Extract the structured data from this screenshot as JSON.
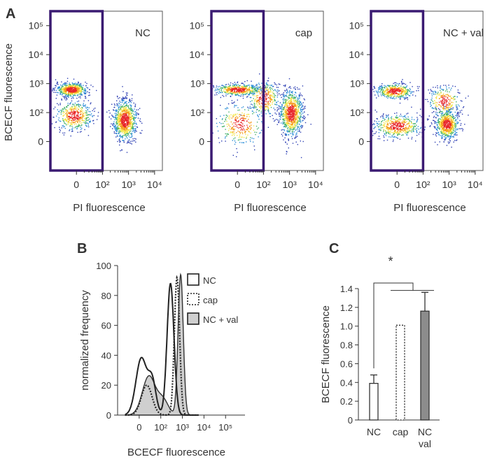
{
  "figure": {
    "panel_labels": {
      "a": "A",
      "b": "B",
      "c": "C"
    }
  },
  "chart_data": [
    {
      "type": "scatter",
      "panel": "A",
      "subplots": [
        {
          "label": "NC",
          "clusters": [
            {
              "x": 0.8,
              "y": 2.8,
              "n": 600,
              "sx": 0.3,
              "sy": 0.12
            },
            {
              "x": 0.9,
              "y": 1.9,
              "n": 450,
              "sx": 0.35,
              "sy": 0.25
            },
            {
              "x": 2.85,
              "y": 1.75,
              "n": 900,
              "sx": 0.22,
              "sy": 0.35
            }
          ]
        },
        {
          "label": "cap",
          "clusters": [
            {
              "x": 1.0,
              "y": 2.8,
              "n": 500,
              "sx": 0.45,
              "sy": 0.1
            },
            {
              "x": 2.0,
              "y": 2.5,
              "n": 300,
              "sx": 0.3,
              "sy": 0.3
            },
            {
              "x": 3.05,
              "y": 2.0,
              "n": 900,
              "sx": 0.22,
              "sy": 0.4
            },
            {
              "x": 1.1,
              "y": 1.6,
              "n": 300,
              "sx": 0.45,
              "sy": 0.35
            }
          ]
        },
        {
          "label": "NC + val",
          "clusters": [
            {
              "x": 0.9,
              "y": 2.75,
              "n": 450,
              "sx": 0.35,
              "sy": 0.13
            },
            {
              "x": 1.0,
              "y": 1.55,
              "n": 500,
              "sx": 0.45,
              "sy": 0.2
            },
            {
              "x": 2.8,
              "y": 2.4,
              "n": 250,
              "sx": 0.3,
              "sy": 0.25
            },
            {
              "x": 2.9,
              "y": 1.6,
              "n": 700,
              "sx": 0.22,
              "sy": 0.25
            }
          ]
        }
      ],
      "xlabel": "PI fluorescence",
      "ylabel": "BCECF fluorescence",
      "x_ticks": [
        {
          "v": 1,
          "label": "0"
        },
        {
          "v": 2,
          "label": "10²"
        },
        {
          "v": 3,
          "label": "10³"
        },
        {
          "v": 4,
          "label": "10⁴"
        }
      ],
      "y_ticks": [
        {
          "v": 1,
          "label": "0"
        },
        {
          "v": 2,
          "label": "10²"
        },
        {
          "v": 3,
          "label": "10³"
        },
        {
          "v": 4,
          "label": "10⁴"
        },
        {
          "v": 5,
          "label": "10⁵"
        }
      ],
      "xlim": [
        0,
        4.3
      ],
      "ylim": [
        0,
        5.5
      ],
      "gate": {
        "x": [
          0,
          2.0
        ],
        "y": [
          0,
          5.5
        ]
      }
    },
    {
      "type": "line",
      "panel": "B",
      "xlabel": "BCECF fluorescence",
      "ylabel": "normalized frequency",
      "xlim": [
        0,
        5.9
      ],
      "ylim": [
        0,
        100
      ],
      "x_ticks": [
        {
          "v": 1,
          "label": "0"
        },
        {
          "v": 2,
          "label": "10²"
        },
        {
          "v": 3,
          "label": "10³"
        },
        {
          "v": 4,
          "label": "10⁴"
        },
        {
          "v": 5,
          "label": "10⁵"
        }
      ],
      "y_ticks": [
        0,
        20,
        40,
        60,
        80,
        100
      ],
      "series": [
        {
          "name": "NC",
          "style": "solid",
          "peaks": [
            {
              "x": 1.1,
              "h": 38,
              "w": 0.25
            },
            {
              "x": 1.6,
              "h": 22,
              "w": 0.18
            },
            {
              "x": 2.45,
              "h": 88,
              "w": 0.16
            }
          ]
        },
        {
          "name": "cap",
          "style": "dotted",
          "peaks": [
            {
              "x": 1.35,
              "h": 20,
              "w": 0.25
            },
            {
              "x": 2.75,
              "h": 92,
              "w": 0.12
            }
          ]
        },
        {
          "name": "NC + val",
          "style": "filled",
          "peaks": [
            {
              "x": 1.45,
              "h": 26,
              "w": 0.3
            },
            {
              "x": 2.1,
              "h": 10,
              "w": 0.25
            },
            {
              "x": 2.92,
              "h": 94,
              "w": 0.12
            }
          ]
        }
      ],
      "legend": [
        "NC",
        "cap",
        "NC + val"
      ]
    },
    {
      "type": "bar",
      "panel": "C",
      "categories": [
        "NC",
        "cap",
        "NC val"
      ],
      "category_lines": [
        [
          "NC"
        ],
        [
          "cap"
        ],
        [
          "NC",
          "val"
        ]
      ],
      "values": [
        0.39,
        1.01,
        1.16
      ],
      "errors": [
        0.09,
        0,
        0.2
      ],
      "bar_styles": [
        "open",
        "dotted",
        "filled"
      ],
      "ylabel": "BCECF fluorescence",
      "ylim": [
        0,
        1.4
      ],
      "y_ticks": [
        "0",
        "0.2",
        "0.4",
        "0.6",
        "0.8",
        "1.0",
        "1.2",
        "1.4"
      ],
      "annotation": "*"
    }
  ]
}
